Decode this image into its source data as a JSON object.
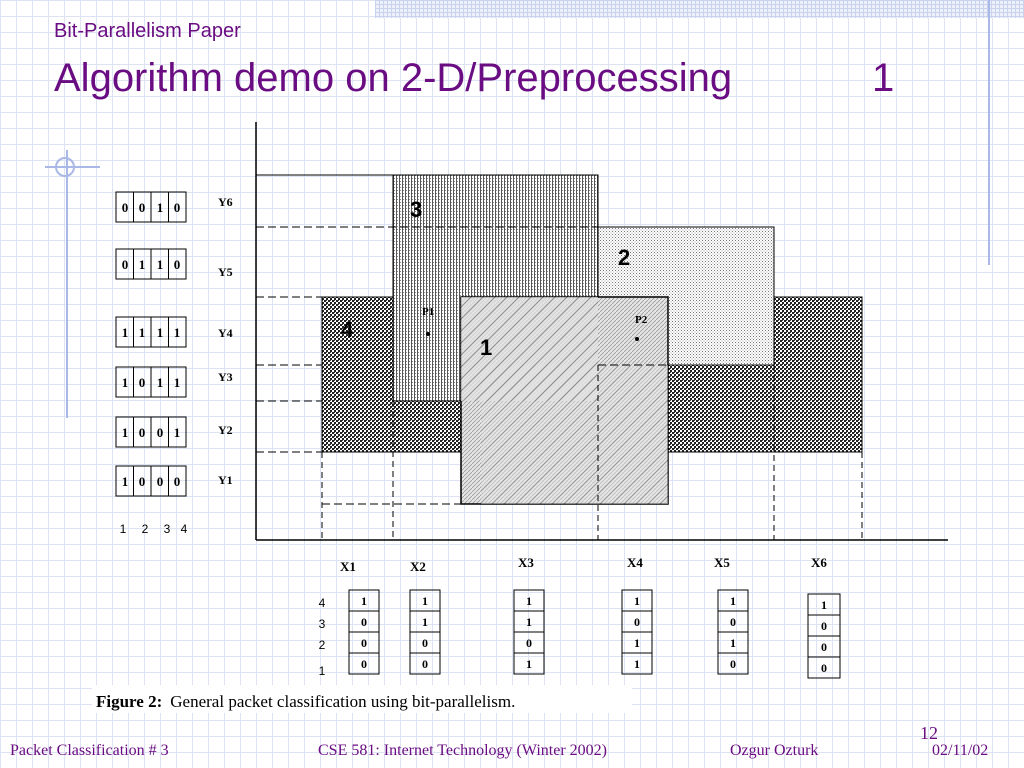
{
  "header": {
    "subtitle": "Bit-Parallelism Paper",
    "title": "Algorithm demo on 2-D/Preprocessing",
    "title_number": "1"
  },
  "figure": {
    "caption_bold": "Figure 2:",
    "caption_text": "General packet classification using bit-parallelism.",
    "rect_labels": [
      "3",
      "2",
      "4",
      "1"
    ],
    "point_labels": [
      "P1",
      "P2"
    ],
    "y_labels": [
      "Y6",
      "Y5",
      "Y4",
      "Y3",
      "Y2",
      "Y1"
    ],
    "y_vectors": [
      [
        "0",
        "0",
        "1",
        "0"
      ],
      [
        "0",
        "1",
        "1",
        "0"
      ],
      [
        "1",
        "1",
        "1",
        "1"
      ],
      [
        "1",
        "0",
        "1",
        "1"
      ],
      [
        "1",
        "0",
        "0",
        "1"
      ],
      [
        "1",
        "0",
        "0",
        "0"
      ]
    ],
    "y_column_numbers": [
      "1",
      "2",
      "3",
      "4"
    ],
    "x_labels": [
      "X1",
      "X2",
      "X3",
      "X4",
      "X5",
      "X6"
    ],
    "x_vectors": [
      [
        "1",
        "0",
        "0",
        "0"
      ],
      [
        "1",
        "1",
        "0",
        "0"
      ],
      [
        "1",
        "1",
        "0",
        "1"
      ],
      [
        "1",
        "0",
        "1",
        "1"
      ],
      [
        "1",
        "0",
        "1",
        "0"
      ],
      [
        "1",
        "0",
        "0",
        "0"
      ]
    ],
    "x_row_numbers": [
      "4",
      "3",
      "2",
      "1"
    ]
  },
  "footer": {
    "left": "Packet Classification # 3",
    "course": "CSE 581: Internet Technology (Winter 2002)",
    "author": "Ozgur Ozturk",
    "date": "02/11/02",
    "slide_number": "12"
  }
}
